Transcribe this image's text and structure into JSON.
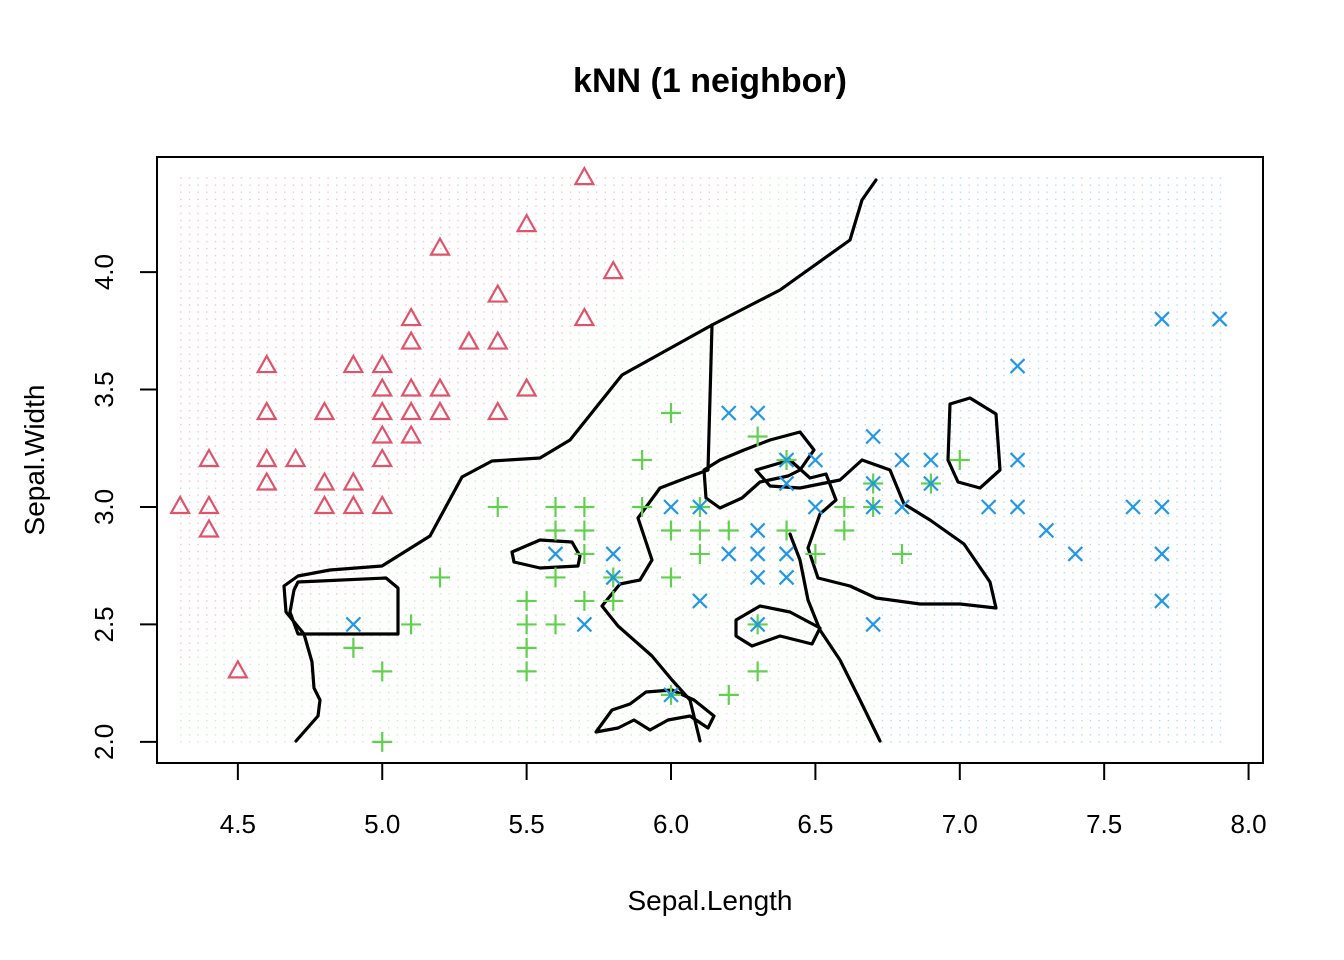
{
  "chart_data": {
    "type": "scatter",
    "title": "kNN (1 neighbor)",
    "xlabel": "Sepal.Length",
    "ylabel": "Sepal.Width",
    "xlim": [
      4.22,
      8.05
    ],
    "ylim": [
      1.91,
      4.49
    ],
    "xticks": [
      "4.5",
      "5.0",
      "5.5",
      "6.0",
      "6.5",
      "7.0",
      "7.5",
      "8.0"
    ],
    "yticks": [
      "2.0",
      "2.5",
      "3.0",
      "3.5",
      "4.0"
    ],
    "grid": false,
    "legend": "none",
    "series": [
      {
        "marker": "triangle",
        "color": "#DF536B",
        "points": [
          [
            4.3,
            3.0
          ],
          [
            4.4,
            2.9
          ],
          [
            4.4,
            3.0
          ],
          [
            4.4,
            3.2
          ],
          [
            4.5,
            2.3
          ],
          [
            4.6,
            3.1
          ],
          [
            4.6,
            3.2
          ],
          [
            4.6,
            3.4
          ],
          [
            4.6,
            3.6
          ],
          [
            4.7,
            3.2
          ],
          [
            4.8,
            3.0
          ],
          [
            4.8,
            3.1
          ],
          [
            4.8,
            3.4
          ],
          [
            4.9,
            3.0
          ],
          [
            4.9,
            3.1
          ],
          [
            4.9,
            3.6
          ],
          [
            5.0,
            3.0
          ],
          [
            5.0,
            3.2
          ],
          [
            5.0,
            3.3
          ],
          [
            5.0,
            3.4
          ],
          [
            5.0,
            3.5
          ],
          [
            5.0,
            3.6
          ],
          [
            5.1,
            3.3
          ],
          [
            5.1,
            3.4
          ],
          [
            5.1,
            3.5
          ],
          [
            5.1,
            3.7
          ],
          [
            5.1,
            3.8
          ],
          [
            5.2,
            3.4
          ],
          [
            5.2,
            3.5
          ],
          [
            5.2,
            4.1
          ],
          [
            5.3,
            3.7
          ],
          [
            5.4,
            3.4
          ],
          [
            5.4,
            3.7
          ],
          [
            5.4,
            3.9
          ],
          [
            5.5,
            3.5
          ],
          [
            5.5,
            4.2
          ],
          [
            5.7,
            3.8
          ],
          [
            5.7,
            4.4
          ],
          [
            5.8,
            4.0
          ]
        ]
      },
      {
        "marker": "plus",
        "color": "#61D04F",
        "points": [
          [
            4.9,
            2.4
          ],
          [
            5.0,
            2.0
          ],
          [
            5.0,
            2.3
          ],
          [
            5.1,
            2.5
          ],
          [
            5.2,
            2.7
          ],
          [
            5.4,
            3.0
          ],
          [
            5.5,
            2.3
          ],
          [
            5.5,
            2.4
          ],
          [
            5.5,
            2.5
          ],
          [
            5.5,
            2.6
          ],
          [
            5.6,
            2.5
          ],
          [
            5.6,
            2.7
          ],
          [
            5.6,
            2.9
          ],
          [
            5.6,
            3.0
          ],
          [
            5.7,
            2.6
          ],
          [
            5.7,
            2.8
          ],
          [
            5.7,
            2.9
          ],
          [
            5.7,
            3.0
          ],
          [
            5.8,
            2.6
          ],
          [
            5.8,
            2.7
          ],
          [
            5.9,
            3.0
          ],
          [
            5.9,
            3.2
          ],
          [
            6.0,
            2.2
          ],
          [
            6.0,
            2.7
          ],
          [
            6.0,
            2.9
          ],
          [
            6.0,
            3.4
          ],
          [
            6.1,
            2.8
          ],
          [
            6.1,
            2.9
          ],
          [
            6.1,
            3.0
          ],
          [
            6.2,
            2.2
          ],
          [
            6.2,
            2.9
          ],
          [
            6.3,
            2.3
          ],
          [
            6.3,
            2.5
          ],
          [
            6.3,
            3.3
          ],
          [
            6.4,
            2.9
          ],
          [
            6.4,
            3.2
          ],
          [
            6.5,
            2.8
          ],
          [
            6.6,
            2.9
          ],
          [
            6.6,
            3.0
          ],
          [
            6.7,
            3.0
          ],
          [
            6.7,
            3.1
          ],
          [
            6.8,
            2.8
          ],
          [
            6.9,
            3.1
          ],
          [
            7.0,
            3.2
          ]
        ]
      },
      {
        "marker": "x",
        "color": "#2297E6",
        "points": [
          [
            4.9,
            2.5
          ],
          [
            5.6,
            2.8
          ],
          [
            5.7,
            2.5
          ],
          [
            5.8,
            2.7
          ],
          [
            5.8,
            2.8
          ],
          [
            6.0,
            2.2
          ],
          [
            6.0,
            3.0
          ],
          [
            6.1,
            2.6
          ],
          [
            6.1,
            3.0
          ],
          [
            6.2,
            2.8
          ],
          [
            6.2,
            3.4
          ],
          [
            6.3,
            2.5
          ],
          [
            6.3,
            2.7
          ],
          [
            6.3,
            2.8
          ],
          [
            6.3,
            2.9
          ],
          [
            6.3,
            3.4
          ],
          [
            6.4,
            2.7
          ],
          [
            6.4,
            2.8
          ],
          [
            6.4,
            3.1
          ],
          [
            6.4,
            3.2
          ],
          [
            6.5,
            3.0
          ],
          [
            6.5,
            3.2
          ],
          [
            6.7,
            2.5
          ],
          [
            6.7,
            3.0
          ],
          [
            6.7,
            3.1
          ],
          [
            6.7,
            3.3
          ],
          [
            6.8,
            3.0
          ],
          [
            6.8,
            3.2
          ],
          [
            6.9,
            3.1
          ],
          [
            6.9,
            3.2
          ],
          [
            7.1,
            3.0
          ],
          [
            7.2,
            3.0
          ],
          [
            7.2,
            3.2
          ],
          [
            7.2,
            3.6
          ],
          [
            7.3,
            2.9
          ],
          [
            7.4,
            2.8
          ],
          [
            7.6,
            3.0
          ],
          [
            7.7,
            2.6
          ],
          [
            7.7,
            2.8
          ],
          [
            7.7,
            3.0
          ],
          [
            7.7,
            3.8
          ],
          [
            7.9,
            3.8
          ]
        ]
      }
    ]
  }
}
